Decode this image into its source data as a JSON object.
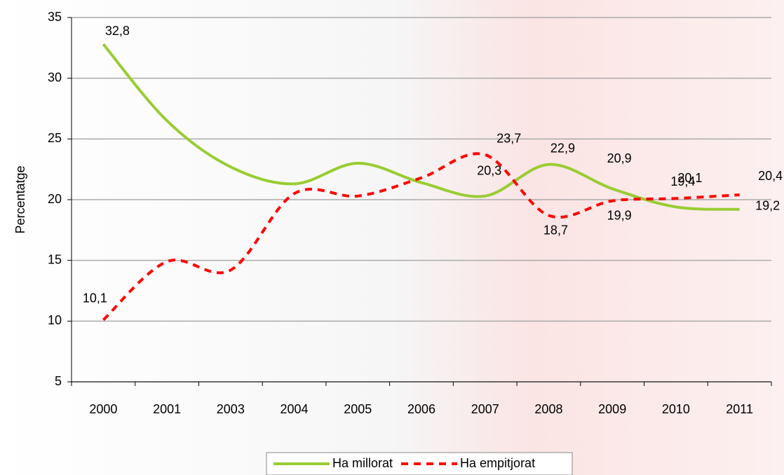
{
  "chart_data": {
    "type": "line",
    "y_label": "Percentatge",
    "categories": [
      "2000",
      "2001",
      "2003",
      "2004",
      "2005",
      "2006",
      "2007",
      "2008",
      "2009",
      "2010",
      "2011"
    ],
    "series": [
      {
        "name": "Ha millorat",
        "color": "#99cc33",
        "dash": false,
        "values": [
          32.8,
          26.5,
          22.7,
          21.3,
          23.0,
          21.4,
          20.3,
          22.9,
          20.9,
          19.4,
          19.2
        ],
        "value_labels": [
          "32,8",
          null,
          null,
          null,
          null,
          null,
          "20,3",
          "22,9",
          "20,9",
          "19,4",
          "19,2"
        ]
      },
      {
        "name": "Ha empitjorat",
        "color": "#ff0000",
        "dash": true,
        "values": [
          10.1,
          14.9,
          14.2,
          20.5,
          20.3,
          21.8,
          23.7,
          18.7,
          19.9,
          20.1,
          20.4
        ],
        "value_labels": [
          "10,1",
          null,
          null,
          null,
          null,
          null,
          "23,7",
          "18,7",
          "19,9",
          "20,1",
          "20,4"
        ]
      }
    ],
    "ylim": [
      5,
      35
    ],
    "yticks": [
      5,
      10,
      15,
      20,
      25,
      30,
      35
    ],
    "grid": true
  }
}
